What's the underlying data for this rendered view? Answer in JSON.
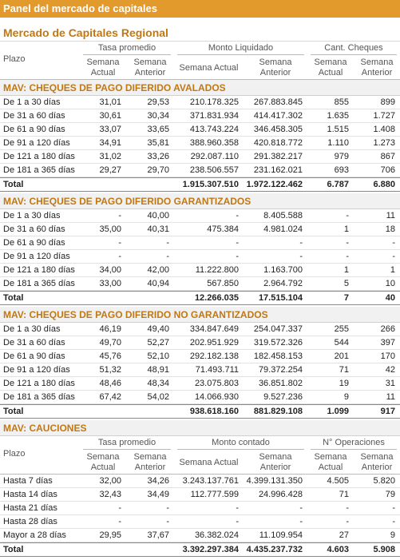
{
  "header": {
    "title": "Panel del mercado de capitales",
    "subtitle": "Mercado de Capitales Regional"
  },
  "table": {
    "columns": {
      "plazo": "Plazo",
      "groups": [
        "Tasa promedio",
        "Monto Liquidado",
        "Cant. Cheques"
      ],
      "sub": [
        "Semana Actual",
        "Semana Anterior",
        "Semana Actual",
        "Semana Anterior",
        "Semana Actual",
        "Semana Anterior"
      ]
    },
    "sections": [
      {
        "title": "MAV: CHEQUES DE PAGO DIFERIDO AVALADOS",
        "rows": [
          [
            "De 1 a 30 días",
            "31,01",
            "29,53",
            "210.178.325",
            "267.883.845",
            "855",
            "899"
          ],
          [
            "De 31 a 60 días",
            "30,61",
            "30,34",
            "371.831.934",
            "414.417.302",
            "1.635",
            "1.727"
          ],
          [
            "De 61 a 90 días",
            "33,07",
            "33,65",
            "413.743.224",
            "346.458.305",
            "1.515",
            "1.408"
          ],
          [
            "De 91 a 120 días",
            "34,91",
            "35,81",
            "388.960.358",
            "420.818.772",
            "1.110",
            "1.273"
          ],
          [
            "De 121 a 180 días",
            "31,02",
            "33,26",
            "292.087.110",
            "291.382.217",
            "979",
            "867"
          ],
          [
            "De 181 a 365 días",
            "29,27",
            "29,70",
            "238.506.557",
            "231.162.021",
            "693",
            "706"
          ]
        ],
        "total": {
          "label": "Total",
          "values": [
            "1.915.307.510",
            "1.972.122.462",
            "6.787",
            "6.880"
          ]
        }
      },
      {
        "title": "MAV: CHEQUES DE PAGO DIFERIDO GARANTIZADOS",
        "rows": [
          [
            "De 1 a 30 días",
            "-",
            "40,00",
            "-",
            "8.405.588",
            "-",
            "11"
          ],
          [
            "De 31 a 60 días",
            "35,00",
            "40,31",
            "475.384",
            "4.981.024",
            "1",
            "18"
          ],
          [
            "De 61 a 90 días",
            "-",
            "-",
            "-",
            "-",
            "-",
            "-"
          ],
          [
            "De 91 a 120 días",
            "-",
            "-",
            "-",
            "-",
            "-",
            "-"
          ],
          [
            "De 121 a 180 días",
            "34,00",
            "42,00",
            "11.222.800",
            "1.163.700",
            "1",
            "1"
          ],
          [
            "De 181 a 365 días",
            "33,00",
            "40,94",
            "567.850",
            "2.964.792",
            "5",
            "10"
          ]
        ],
        "total": {
          "label": "Total",
          "values": [
            "12.266.035",
            "17.515.104",
            "7",
            "40"
          ]
        }
      },
      {
        "title": "MAV: CHEQUES DE PAGO DIFERIDO NO GARANTIZADOS",
        "rows": [
          [
            "De 1 a 30 días",
            "46,19",
            "49,40",
            "334.847.649",
            "254.047.337",
            "255",
            "266"
          ],
          [
            "De 31 a 60 días",
            "49,70",
            "52,27",
            "202.951.929",
            "319.572.326",
            "544",
            "397"
          ],
          [
            "De 61 a 90 días",
            "45,76",
            "52,10",
            "292.182.138",
            "182.458.153",
            "201",
            "170"
          ],
          [
            "De 91 a 120 días",
            "51,32",
            "48,91",
            "71.493.711",
            "79.372.254",
            "71",
            "42"
          ],
          [
            "De 121 a 180 días",
            "48,46",
            "48,34",
            "23.075.803",
            "36.851.802",
            "19",
            "31"
          ],
          [
            "De 181 a 365 días",
            "67,42",
            "54,02",
            "14.066.930",
            "9.527.236",
            "9",
            "11"
          ]
        ],
        "total": {
          "label": "Total",
          "values": [
            "938.618.160",
            "881.829.108",
            "1.099",
            "917"
          ]
        }
      },
      {
        "title": "MAV: CAUCIONES",
        "columns": {
          "plazo": "Plazo",
          "groups": [
            "Tasa promedio",
            "Monto contado",
            "N° Operaciones"
          ],
          "sub": [
            "Semana Actual",
            "Semana Anterior",
            "Semana Actual",
            "Semana Anterior",
            "Semana Actual",
            "Semana Anterior"
          ]
        },
        "rows": [
          [
            "Hasta 7 días",
            "32,00",
            "34,26",
            "3.243.137.761",
            "4.399.131.350",
            "4.505",
            "5.820"
          ],
          [
            "Hasta 14 días",
            "32,43",
            "34,49",
            "112.777.599",
            "24.996.428",
            "71",
            "79"
          ],
          [
            "Hasta 21 días",
            "-",
            "-",
            "-",
            "-",
            "-",
            "-"
          ],
          [
            "Hasta 28 días",
            "-",
            "-",
            "-",
            "-",
            "-",
            "-"
          ],
          [
            "Mayor a 28 días",
            "29,95",
            "37,67",
            "36.382.024",
            "11.109.954",
            "27",
            "9"
          ]
        ],
        "total": {
          "label": "Total",
          "values": [
            "3.392.297.384",
            "4.435.237.732",
            "4.603",
            "5.908"
          ]
        }
      }
    ]
  }
}
